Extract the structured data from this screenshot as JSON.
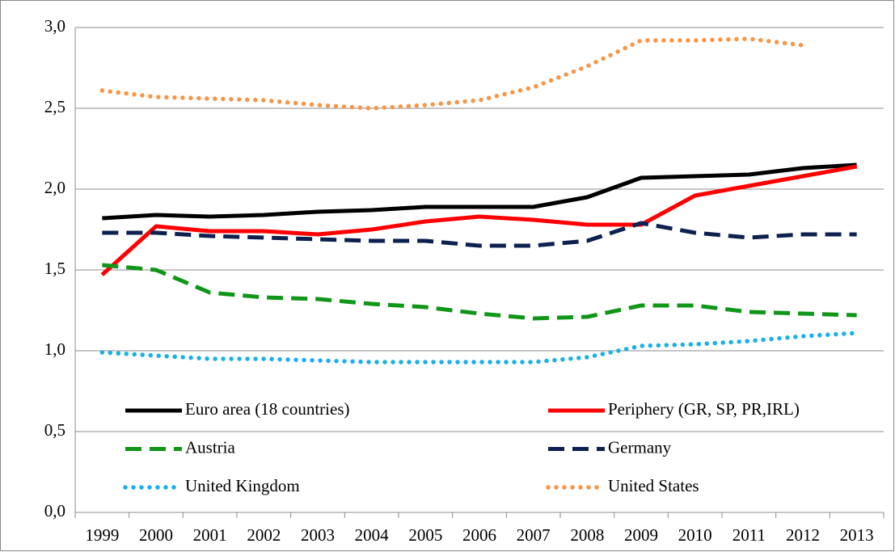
{
  "chart_data": {
    "type": "line",
    "categories": [
      "1999",
      "2000",
      "2001",
      "2002",
      "2003",
      "2004",
      "2005",
      "2006",
      "2007",
      "2008",
      "2009",
      "2010",
      "2011",
      "2012",
      "2013"
    ],
    "ylim": [
      0,
      3
    ],
    "yticks": [
      {
        "value": 0,
        "label": "0,0"
      },
      {
        "value": 0.5,
        "label": "0,5"
      },
      {
        "value": 1,
        "label": "1,0"
      },
      {
        "value": 1.5,
        "label": "1,5"
      },
      {
        "value": 2,
        "label": "2,0"
      },
      {
        "value": 2.5,
        "label": "2,5"
      },
      {
        "value": 3,
        "label": "3,0"
      }
    ],
    "grid": true,
    "legend": "inside-bottom",
    "series": [
      {
        "name": "Euro area (18 countries)",
        "color": "#000000",
        "style": "solid",
        "values": [
          1.82,
          1.84,
          1.83,
          1.84,
          1.86,
          1.87,
          1.89,
          1.89,
          1.89,
          1.95,
          2.07,
          2.08,
          2.09,
          2.13,
          2.15
        ]
      },
      {
        "name": "Periphery (GR, SP, PR,IRL)",
        "color": "#ff0000",
        "style": "solid",
        "values": [
          1.47,
          1.77,
          1.74,
          1.74,
          1.72,
          1.75,
          1.8,
          1.83,
          1.81,
          1.78,
          1.78,
          1.96,
          2.02,
          2.08,
          2.14
        ]
      },
      {
        "name": "Austria",
        "color": "#109618",
        "style": "dash",
        "values": [
          1.53,
          1.5,
          1.36,
          1.33,
          1.32,
          1.29,
          1.27,
          1.23,
          1.2,
          1.21,
          1.28,
          1.28,
          1.24,
          1.23,
          1.22
        ]
      },
      {
        "name": "Germany",
        "color": "#0d2150",
        "style": "dash",
        "values": [
          1.73,
          1.73,
          1.71,
          1.7,
          1.69,
          1.68,
          1.68,
          1.65,
          1.65,
          1.68,
          1.79,
          1.73,
          1.7,
          1.72,
          1.72
        ]
      },
      {
        "name": "United Kingdom",
        "color": "#1ab0e8",
        "style": "dot",
        "values": [
          0.99,
          0.97,
          0.95,
          0.95,
          0.94,
          0.93,
          0.93,
          0.93,
          0.93,
          0.96,
          1.03,
          1.04,
          1.06,
          1.09,
          1.11
        ]
      },
      {
        "name": "United States",
        "color": "#f79646",
        "style": "dot",
        "values": [
          2.61,
          2.57,
          2.56,
          2.55,
          2.52,
          2.5,
          2.52,
          2.55,
          2.63,
          2.76,
          2.92,
          2.92,
          2.93,
          2.89,
          null
        ]
      }
    ]
  }
}
